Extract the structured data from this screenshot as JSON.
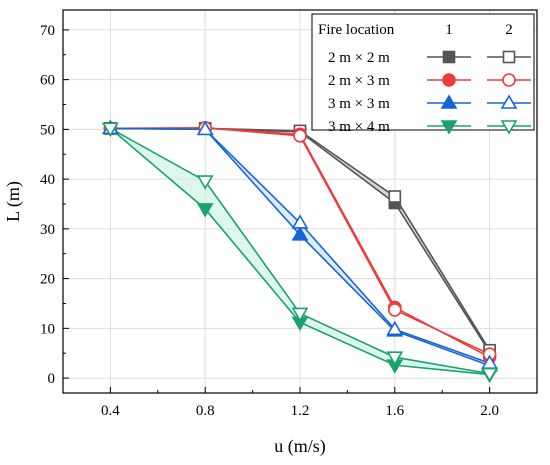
{
  "chart_data": {
    "type": "line",
    "xlabel": "u (m/s)",
    "ylabel": "L (m)",
    "xlim": [
      0.2,
      2.2
    ],
    "ylim": [
      -3,
      74
    ],
    "xticks": [
      "0.4",
      "0.8",
      "1.2",
      "1.6",
      "2.0"
    ],
    "xtick_values": [
      0.4,
      0.8,
      1.2,
      1.6,
      2.0
    ],
    "yticks": [
      "0",
      "10",
      "20",
      "30",
      "40",
      "50",
      "60",
      "70"
    ],
    "ytick_values": [
      0,
      10,
      20,
      30,
      40,
      50,
      60,
      70
    ],
    "grid": true,
    "x": [
      0.4,
      0.8,
      1.2,
      1.6,
      2.0
    ],
    "legend": {
      "position": "top-right",
      "header": "Fire location",
      "col1": "1",
      "col2": "2"
    },
    "series": [
      {
        "name": "2 m × 2 m",
        "color": "#555555",
        "fill": "#bbbbbb",
        "marker": "square",
        "loc1": [
          50.2,
          50.2,
          49.5,
          35.2,
          5.2
        ],
        "loc2": [
          50.2,
          50.2,
          49.7,
          36.5,
          5.6
        ]
      },
      {
        "name": "2 m × 3 m",
        "color": "#ee3b3b",
        "fill": "#ffc7e6",
        "marker": "circle",
        "loc1": [
          50.2,
          50.3,
          49.0,
          14.2,
          4.2
        ],
        "loc2": [
          50.2,
          50.3,
          48.7,
          13.7,
          4.8
        ]
      },
      {
        "name": "3 m × 3 m",
        "color": "#1565d8",
        "fill": "#c9dcf9",
        "marker": "triangle-up",
        "loc1": [
          50.2,
          50.0,
          28.8,
          9.5,
          2.5
        ],
        "loc2": [
          50.2,
          50.0,
          31.2,
          9.8,
          3.0
        ]
      },
      {
        "name": "3 m × 4 m",
        "color": "#18a36c",
        "fill": "#c6f1e1",
        "marker": "triangle-down",
        "loc1": [
          50.2,
          34.0,
          11.2,
          2.6,
          0.7
        ],
        "loc2": [
          50.2,
          39.6,
          13.0,
          4.2,
          0.9
        ]
      }
    ]
  }
}
